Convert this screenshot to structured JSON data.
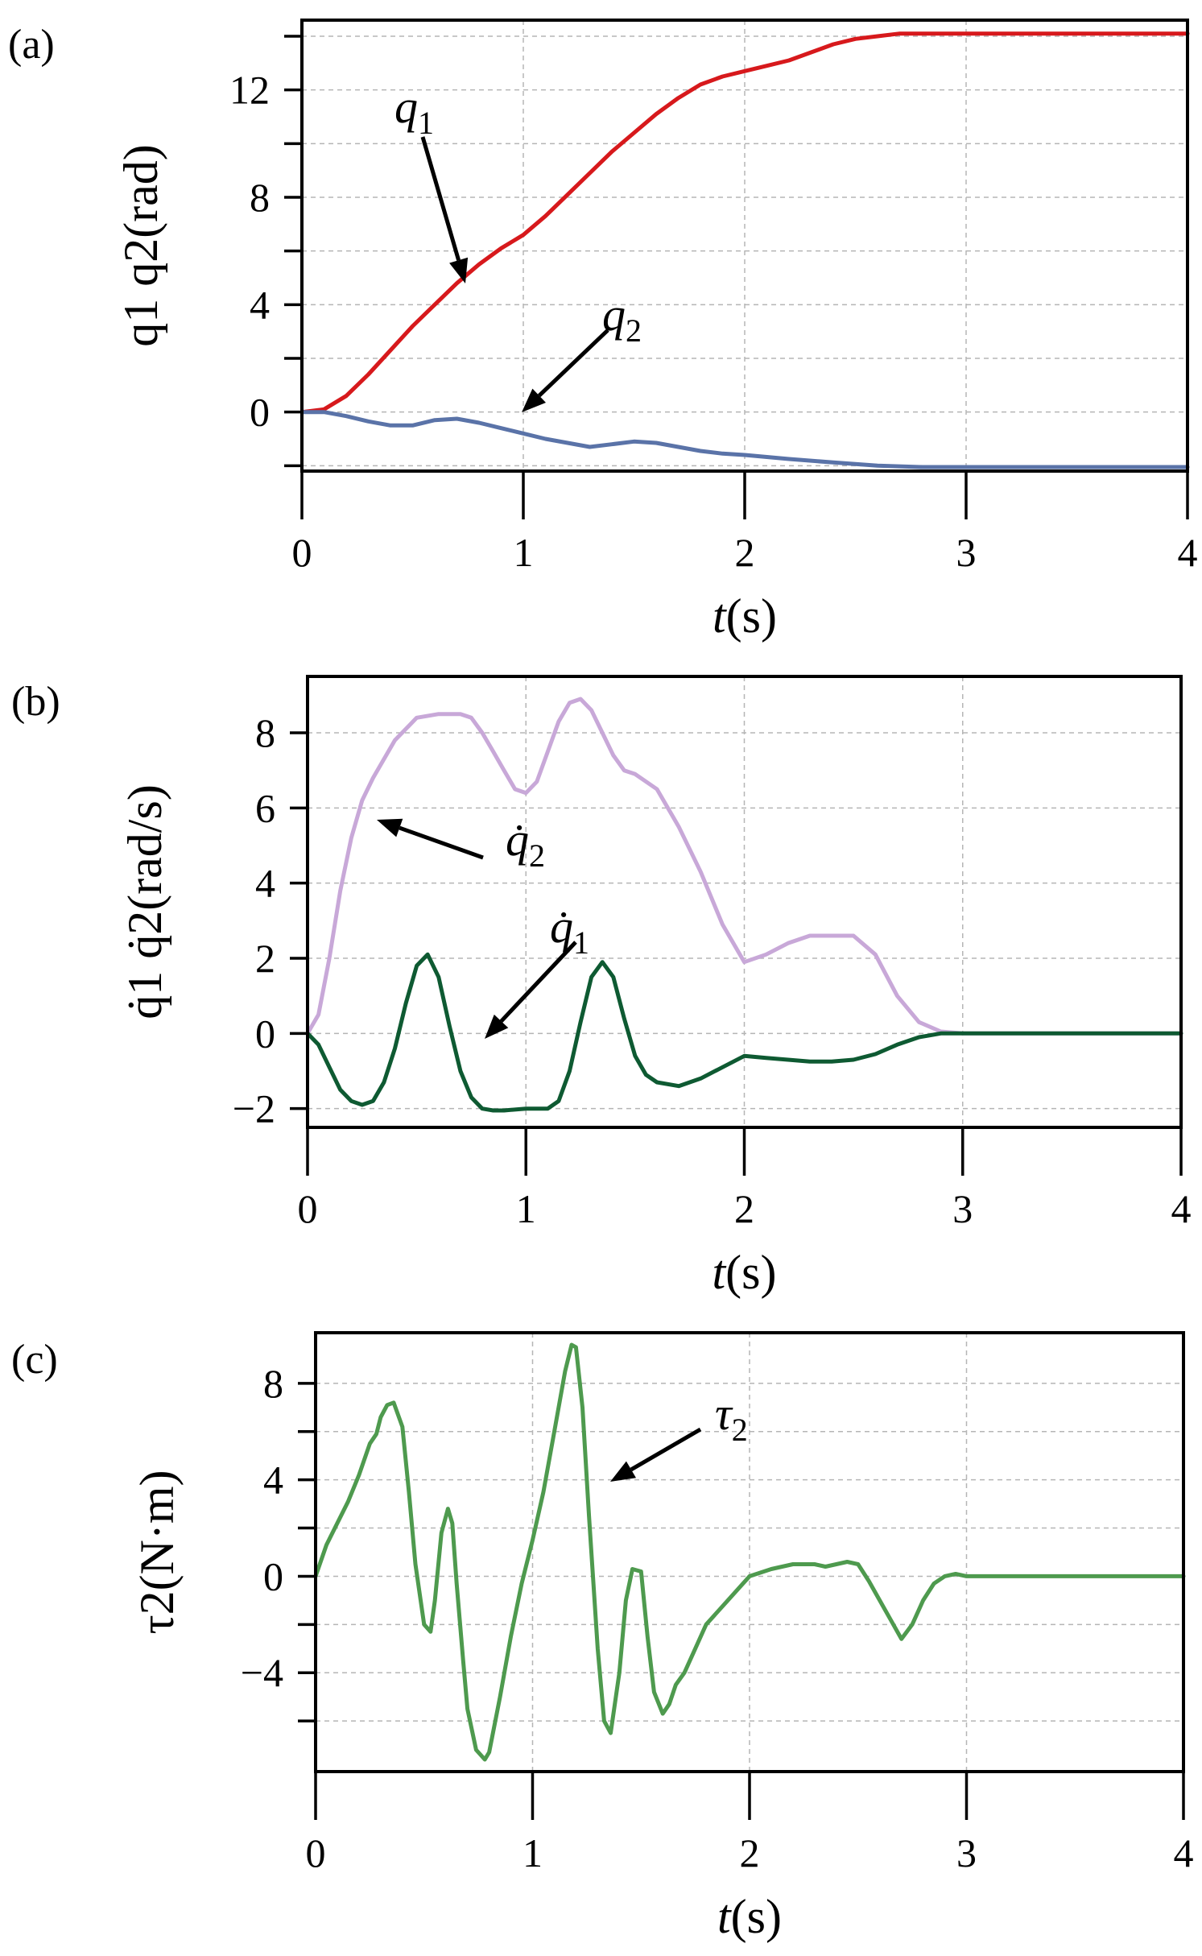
{
  "chart_data": [
    {
      "type": "line",
      "panel_label": "(a)",
      "xlabel": "t(s)",
      "ylabel": "q1 q2(rad)",
      "xlim": [
        0,
        4
      ],
      "ylim": [
        -2.2,
        14.6
      ],
      "xticks": [
        0,
        1,
        2,
        3,
        4
      ],
      "yticks": [
        0,
        4,
        8,
        12
      ],
      "ytick_labels": [
        "0",
        "4",
        "8",
        "12"
      ],
      "yminor": [
        -2,
        2,
        6,
        10,
        14
      ],
      "series": [
        {
          "name": "q1",
          "color": "#d7191c",
          "x": [
            0,
            0.1,
            0.2,
            0.3,
            0.4,
            0.5,
            0.6,
            0.7,
            0.8,
            0.9,
            1.0,
            1.1,
            1.2,
            1.3,
            1.4,
            1.5,
            1.6,
            1.7,
            1.8,
            1.9,
            2.0,
            2.1,
            2.2,
            2.3,
            2.4,
            2.5,
            2.6,
            2.7,
            2.8,
            3.0,
            3.5,
            4.0
          ],
          "y": [
            0,
            0.1,
            0.6,
            1.4,
            2.3,
            3.2,
            4.0,
            4.8,
            5.5,
            6.1,
            6.6,
            7.3,
            8.1,
            8.9,
            9.7,
            10.4,
            11.1,
            11.7,
            12.2,
            12.5,
            12.7,
            12.9,
            13.1,
            13.4,
            13.7,
            13.9,
            14.0,
            14.1,
            14.1,
            14.1,
            14.1,
            14.1
          ]
        },
        {
          "name": "q2",
          "color": "#5a73a8",
          "x": [
            0,
            0.1,
            0.2,
            0.3,
            0.4,
            0.5,
            0.6,
            0.7,
            0.8,
            0.9,
            1.0,
            1.1,
            1.2,
            1.3,
            1.4,
            1.5,
            1.6,
            1.7,
            1.8,
            1.9,
            2.0,
            2.2,
            2.4,
            2.6,
            2.8,
            3.0,
            3.5,
            4.0
          ],
          "y": [
            0,
            0,
            -0.15,
            -0.35,
            -0.5,
            -0.5,
            -0.3,
            -0.25,
            -0.4,
            -0.6,
            -0.8,
            -1.0,
            -1.15,
            -1.3,
            -1.2,
            -1.1,
            -1.15,
            -1.3,
            -1.45,
            -1.55,
            -1.6,
            -1.75,
            -1.88,
            -2.0,
            -2.05,
            -2.05,
            -2.05,
            -2.05
          ]
        }
      ],
      "annotations": [
        {
          "text": "q",
          "sub": "1",
          "target": [
            0.67,
            4.8
          ]
        },
        {
          "text": "q",
          "sub": "2",
          "target": [
            0.95,
            -0.3
          ]
        }
      ]
    },
    {
      "type": "line",
      "panel_label": "(b)",
      "xlabel": "t(s)",
      "ylabel": "q̇1 q̇2(rad/s)",
      "xlim": [
        0,
        4
      ],
      "ylim": [
        -2.5,
        9.5
      ],
      "xticks": [
        0,
        1,
        2,
        3,
        4
      ],
      "yticks": [
        -2,
        0,
        2,
        4,
        6,
        8
      ],
      "ytick_labels": [
        "−2",
        "0",
        "2",
        "4",
        "6",
        "8"
      ],
      "yminor": [],
      "series": [
        {
          "name": "q̇2",
          "color": "#c8a8d8",
          "x": [
            0,
            0.05,
            0.1,
            0.15,
            0.2,
            0.25,
            0.3,
            0.4,
            0.5,
            0.6,
            0.7,
            0.75,
            0.8,
            0.85,
            0.9,
            0.95,
            1.0,
            1.05,
            1.1,
            1.15,
            1.2,
            1.25,
            1.3,
            1.35,
            1.4,
            1.45,
            1.5,
            1.6,
            1.7,
            1.8,
            1.9,
            2.0,
            2.1,
            2.2,
            2.3,
            2.4,
            2.5,
            2.6,
            2.7,
            2.8,
            2.9,
            3.0,
            3.5,
            4.0
          ],
          "y": [
            0,
            0.5,
            2.0,
            3.8,
            5.2,
            6.2,
            6.8,
            7.8,
            8.4,
            8.5,
            8.5,
            8.4,
            8.0,
            7.5,
            7.0,
            6.5,
            6.4,
            6.7,
            7.5,
            8.3,
            8.8,
            8.9,
            8.6,
            8.0,
            7.4,
            7.0,
            6.9,
            6.5,
            5.5,
            4.3,
            2.9,
            1.9,
            2.1,
            2.4,
            2.6,
            2.6,
            2.6,
            2.1,
            1.0,
            0.3,
            0.05,
            0,
            0,
            0
          ]
        },
        {
          "name": "q̇1",
          "color": "#0e5a32",
          "x": [
            0,
            0.05,
            0.1,
            0.15,
            0.2,
            0.25,
            0.3,
            0.35,
            0.4,
            0.45,
            0.5,
            0.55,
            0.6,
            0.65,
            0.7,
            0.75,
            0.8,
            0.85,
            0.9,
            1.0,
            1.1,
            1.15,
            1.2,
            1.25,
            1.3,
            1.35,
            1.4,
            1.45,
            1.5,
            1.55,
            1.6,
            1.7,
            1.8,
            1.9,
            2.0,
            2.1,
            2.2,
            2.3,
            2.4,
            2.5,
            2.6,
            2.7,
            2.8,
            2.85,
            2.9,
            3.0,
            3.5,
            4.0
          ],
          "y": [
            0,
            -0.3,
            -0.9,
            -1.5,
            -1.8,
            -1.9,
            -1.8,
            -1.3,
            -0.4,
            0.8,
            1.8,
            2.1,
            1.5,
            0.2,
            -1.0,
            -1.7,
            -2.0,
            -2.05,
            -2.05,
            -2.0,
            -2.0,
            -1.8,
            -1.0,
            0.3,
            1.5,
            1.9,
            1.5,
            0.4,
            -0.6,
            -1.1,
            -1.3,
            -1.4,
            -1.2,
            -0.9,
            -0.6,
            -0.65,
            -0.7,
            -0.75,
            -0.75,
            -0.7,
            -0.55,
            -0.3,
            -0.1,
            -0.05,
            0,
            0,
            0,
            0
          ]
        }
      ],
      "annotations": [
        {
          "text": "q̇",
          "sub": "2",
          "target": [
            0.27,
            5.8
          ]
        },
        {
          "text": "q̇",
          "sub": "1",
          "target": [
            0.76,
            -0.3
          ]
        }
      ]
    },
    {
      "type": "line",
      "panel_label": "(c)",
      "xlabel": "t(s)",
      "ylabel": "τ2(N·m)",
      "xlim": [
        0,
        4
      ],
      "ylim": [
        -8.1,
        10.1
      ],
      "xticks": [
        0,
        1,
        2,
        3,
        4
      ],
      "yticks": [
        -4,
        0,
        4,
        8
      ],
      "ytick_labels": [
        "−4",
        "0",
        "4",
        "8"
      ],
      "yminor": [
        -6,
        -2,
        2,
        6
      ],
      "series": [
        {
          "name": "τ2",
          "color": "#4e9a4e",
          "x": [
            0,
            0.05,
            0.1,
            0.15,
            0.2,
            0.25,
            0.28,
            0.3,
            0.33,
            0.36,
            0.4,
            0.43,
            0.46,
            0.5,
            0.53,
            0.55,
            0.58,
            0.61,
            0.63,
            0.65,
            0.68,
            0.7,
            0.74,
            0.78,
            0.8,
            0.85,
            0.9,
            0.95,
            1.0,
            1.05,
            1.1,
            1.15,
            1.18,
            1.2,
            1.23,
            1.26,
            1.3,
            1.33,
            1.36,
            1.4,
            1.43,
            1.46,
            1.5,
            1.53,
            1.56,
            1.6,
            1.63,
            1.66,
            1.7,
            1.75,
            1.8,
            1.9,
            2.0,
            2.1,
            2.2,
            2.3,
            2.35,
            2.4,
            2.45,
            2.5,
            2.55,
            2.6,
            2.65,
            2.7,
            2.75,
            2.8,
            2.85,
            2.9,
            2.95,
            3.0,
            3.5,
            4.0
          ],
          "y": [
            0,
            1.3,
            2.2,
            3.1,
            4.2,
            5.5,
            5.9,
            6.6,
            7.1,
            7.2,
            6.2,
            3.5,
            0.5,
            -2.0,
            -2.3,
            -1.0,
            1.8,
            2.8,
            2.2,
            -0.3,
            -3.5,
            -5.5,
            -7.2,
            -7.6,
            -7.3,
            -5.0,
            -2.5,
            -0.3,
            1.5,
            3.5,
            6.0,
            8.5,
            9.6,
            9.5,
            7.0,
            2.5,
            -3.0,
            -6.0,
            -6.5,
            -4.0,
            -1.0,
            0.3,
            0.2,
            -2.5,
            -4.8,
            -5.7,
            -5.3,
            -4.5,
            -4.0,
            -3.0,
            -2.0,
            -1.0,
            0.0,
            0.3,
            0.5,
            0.5,
            0.4,
            0.5,
            0.6,
            0.5,
            -0.2,
            -1.0,
            -1.8,
            -2.6,
            -2.0,
            -1.0,
            -0.3,
            0,
            0.1,
            0,
            0,
            0
          ]
        }
      ],
      "annotations": [
        {
          "text": "τ",
          "sub": "2",
          "target": [
            1.33,
            3.8
          ]
        }
      ]
    }
  ]
}
